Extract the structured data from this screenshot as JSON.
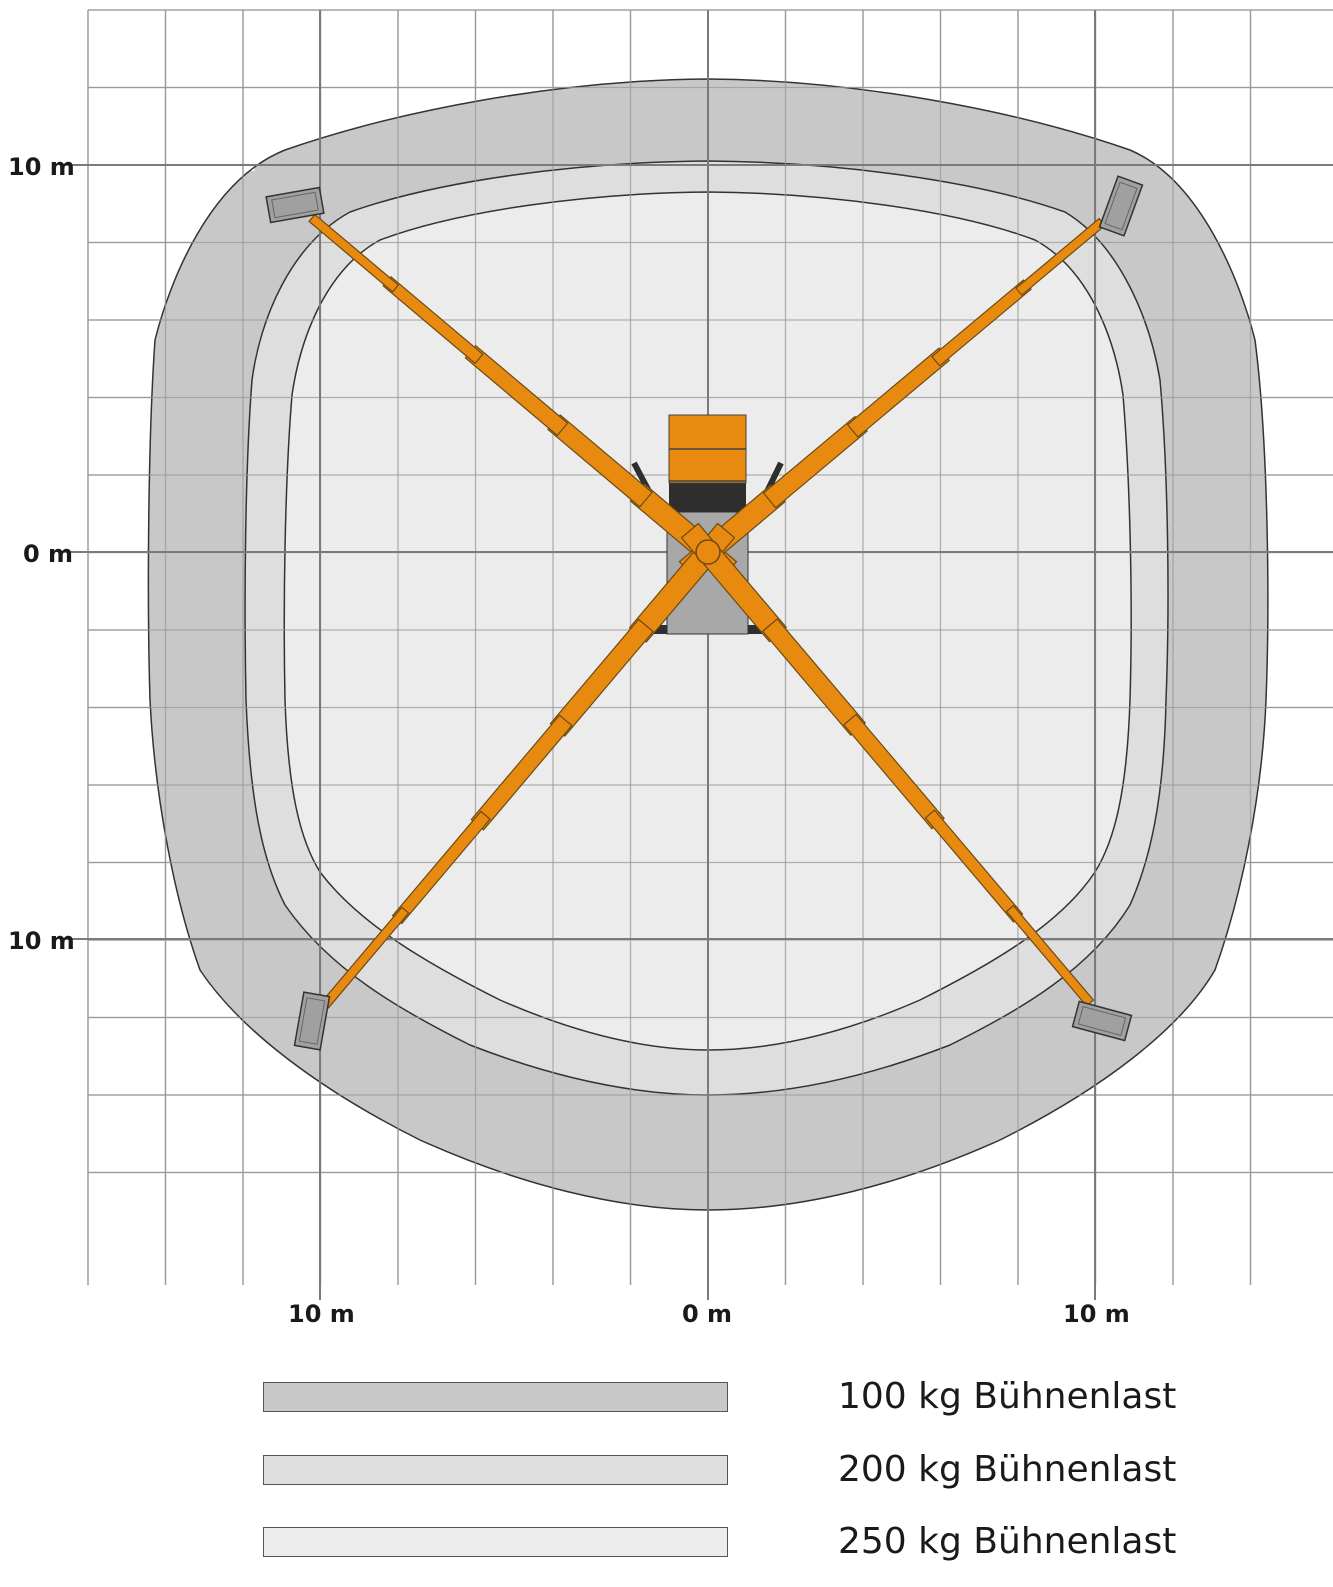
{
  "axes": {
    "y_labels": [
      "10 m",
      "0 m",
      "10 m"
    ],
    "x_labels": [
      "10 m",
      "0 m",
      "10 m"
    ]
  },
  "zones": [
    {
      "label": "100 kg Bühnenlast",
      "color": "#c8c8c8"
    },
    {
      "label": "200 kg Bühnenlast",
      "color": "#dedede"
    },
    {
      "label": "250 kg Bühnenlast",
      "color": "#ececec"
    }
  ],
  "colors": {
    "boom": "#e88a0f",
    "grid": "#9a9a9a",
    "vehicle_body": "#a8a8a8",
    "cab_dark": "#2e2e2e",
    "outrigger_pad": "#a0a0a0"
  }
}
